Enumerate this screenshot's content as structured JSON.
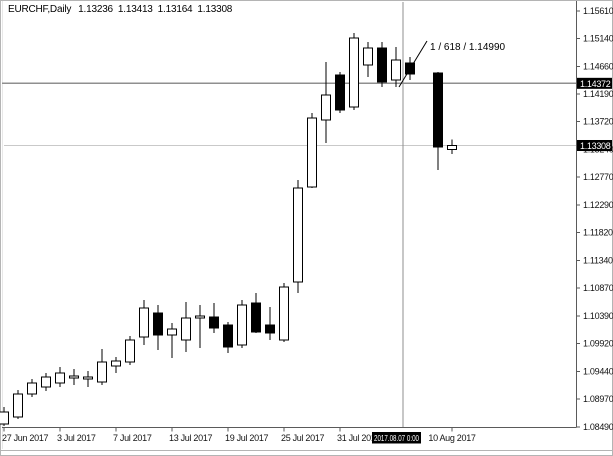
{
  "window": {
    "title": "EURCHF,Daily"
  },
  "chart_data": {
    "type": "candlestick",
    "title": "EURCHF,Daily",
    "symbol": "EURCHF",
    "timeframe": "Daily",
    "quote_ohlc": {
      "open": "1.13236",
      "high": "1.13413",
      "low": "1.13164",
      "close": "1.13308"
    },
    "price_axis": {
      "top_price": 1.1561,
      "bottom_price": 1.0849,
      "ticks": [
        "1.15610",
        "1.15140",
        "1.14660",
        "1.14190",
        "1.13720",
        "1.13240",
        "1.12770",
        "1.12290",
        "1.11820",
        "1.11340",
        "1.10870",
        "1.10390",
        "1.09920",
        "1.09440",
        "1.08970",
        "1.08490"
      ]
    },
    "time_axis": {
      "ticks": [
        {
          "label": "27 Jun 2017",
          "bar": 0,
          "align": "edge"
        },
        {
          "label": "3 Jul 2017",
          "bar": 4,
          "align": "start"
        },
        {
          "label": "7 Jul 2017",
          "bar": 8,
          "align": "start"
        },
        {
          "label": "13 Jul 2017",
          "bar": 12,
          "align": "start"
        },
        {
          "label": "19 Jul 2017",
          "bar": 16,
          "align": "start"
        },
        {
          "label": "25 Jul 2017",
          "bar": 20,
          "align": "start"
        },
        {
          "label": "31 Jul 2017",
          "bar": 24,
          "align": "start"
        },
        {
          "label": "10 Aug 2017",
          "bar": 32,
          "align": "middle"
        }
      ]
    },
    "crosshair": {
      "bar_pos": 28.5,
      "price": 1.14372,
      "price_label": "1.14372",
      "date_label": "2017.08.07 0:00"
    },
    "bid": {
      "price": 1.13308,
      "label": "1.13308"
    },
    "annotation": {
      "text": "1 / 618 / 1.14990"
    },
    "candles": [
      {
        "bar": 0,
        "o": 1.08541,
        "h": 1.08832,
        "l": 1.08507,
        "c": 1.08747
      },
      {
        "bar": 1,
        "o": 1.08661,
        "h": 1.09123,
        "l": 1.08627,
        "c": 1.09055
      },
      {
        "bar": 2,
        "o": 1.09055,
        "h": 1.09312,
        "l": 1.09004,
        "c": 1.09243
      },
      {
        "bar": 3,
        "o": 1.09175,
        "h": 1.09414,
        "l": 1.09106,
        "c": 1.09346
      },
      {
        "bar": 4,
        "o": 1.09243,
        "h": 1.09517,
        "l": 1.09175,
        "c": 1.09414
      },
      {
        "bar": 5,
        "o": 1.09329,
        "h": 1.09483,
        "l": 1.09209,
        "c": 1.09363
      },
      {
        "bar": 6,
        "o": 1.09312,
        "h": 1.09449,
        "l": 1.09175,
        "c": 1.09346
      },
      {
        "bar": 7,
        "o": 1.0926,
        "h": 1.09825,
        "l": 1.09209,
        "c": 1.09603
      },
      {
        "bar": 8,
        "o": 1.09534,
        "h": 1.09688,
        "l": 1.09414,
        "c": 1.0962
      },
      {
        "bar": 9,
        "o": 1.09603,
        "h": 1.10048,
        "l": 1.09551,
        "c": 1.09979
      },
      {
        "bar": 10,
        "o": 1.10031,
        "h": 1.10664,
        "l": 1.09894,
        "c": 1.10527
      },
      {
        "bar": 11,
        "o": 1.10441,
        "h": 1.10578,
        "l": 1.09808,
        "c": 1.10065
      },
      {
        "bar": 12,
        "o": 1.10065,
        "h": 1.1027,
        "l": 1.09671,
        "c": 1.10167
      },
      {
        "bar": 13,
        "o": 1.09979,
        "h": 1.10629,
        "l": 1.09774,
        "c": 1.10356
      },
      {
        "bar": 14,
        "o": 1.10356,
        "h": 1.10578,
        "l": 1.09842,
        "c": 1.1039
      },
      {
        "bar": 15,
        "o": 1.10373,
        "h": 1.10612,
        "l": 1.10099,
        "c": 1.10184
      },
      {
        "bar": 16,
        "o": 1.10236,
        "h": 1.10287,
        "l": 1.09757,
        "c": 1.09859
      },
      {
        "bar": 17,
        "o": 1.09894,
        "h": 1.10664,
        "l": 1.09842,
        "c": 1.10578
      },
      {
        "bar": 18,
        "o": 1.10612,
        "h": 1.10783,
        "l": 1.10099,
        "c": 1.10116
      },
      {
        "bar": 19,
        "o": 1.10236,
        "h": 1.10544,
        "l": 1.09979,
        "c": 1.10099
      },
      {
        "bar": 20,
        "o": 1.09979,
        "h": 1.10955,
        "l": 1.09945,
        "c": 1.10886
      },
      {
        "bar": 21,
        "o": 1.10972,
        "h": 1.12718,
        "l": 1.10783,
        "c": 1.12581
      },
      {
        "bar": 22,
        "o": 1.12598,
        "h": 1.13864,
        "l": 1.12581,
        "c": 1.13779
      },
      {
        "bar": 23,
        "o": 1.13745,
        "h": 1.14737,
        "l": 1.13351,
        "c": 1.14173
      },
      {
        "bar": 24,
        "o": 1.14515,
        "h": 1.14566,
        "l": 1.13864,
        "c": 1.13916
      },
      {
        "bar": 25,
        "o": 1.13967,
        "h": 1.15233,
        "l": 1.13916,
        "c": 1.15148
      },
      {
        "bar": 26,
        "o": 1.14686,
        "h": 1.15079,
        "l": 1.1448,
        "c": 1.14977
      },
      {
        "bar": 27,
        "o": 1.14977,
        "h": 1.15079,
        "l": 1.1431,
        "c": 1.14395
      },
      {
        "bar": 28,
        "o": 1.14429,
        "h": 1.14994,
        "l": 1.1431,
        "c": 1.14771
      },
      {
        "bar": 29,
        "o": 1.1472,
        "h": 1.14823,
        "l": 1.14429,
        "c": 1.14532
      },
      {
        "bar": 31,
        "o": 1.14549,
        "h": 1.14566,
        "l": 1.12889,
        "c": 1.13283
      },
      {
        "bar": 32,
        "o": 1.13236,
        "h": 1.13413,
        "l": 1.13164,
        "c": 1.13308
      }
    ],
    "colors": {
      "background": "#ffffff",
      "up_fill": "#ffffff",
      "down_fill": "#000000",
      "outline": "#000000",
      "axis_line": "#5a5a5a",
      "axis_text": "#141414",
      "crosshair": "#8f8f8f",
      "bid_line": "#c9c9c9",
      "highlight_bg": "#000000",
      "highlight_text": "#ffffff",
      "frame": "#b4b4b4"
    }
  }
}
